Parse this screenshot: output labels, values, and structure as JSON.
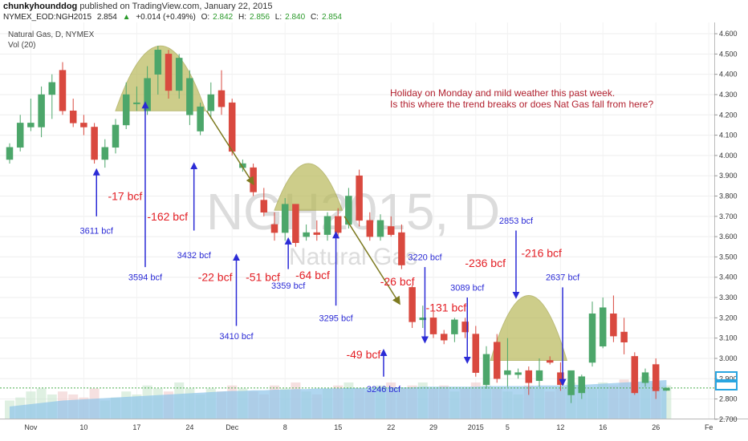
{
  "header": {
    "author": "chunkyhounddog",
    "published_text": "published on TradingView.com, January 22, 2015",
    "symbol": "NYMEX_EOD:NGH2015",
    "last": "2.854",
    "change": "+0.014 (+0.49%)",
    "ohlc": [
      {
        "label": "O:",
        "value": "2.842"
      },
      {
        "label": "H:",
        "value": "2.856"
      },
      {
        "label": "L:",
        "value": "2.840"
      },
      {
        "label": "C:",
        "value": "2.854"
      }
    ]
  },
  "legend": {
    "series_title": "Natural Gas, D, NYMEX",
    "volume_label": "Vol (20)"
  },
  "watermark": {
    "main": "NGH2015, D",
    "sub": "Natural Gas"
  },
  "notes": {
    "line1": "Holiday on Monday and mild weather this past week.",
    "line2": "Is this where the trend breaks or does Nat Gas fall from here?"
  },
  "colors": {
    "up": "#4ca66a",
    "down": "#d9493f",
    "arrow": "#2b2bd6",
    "change_text": "#e31e24",
    "dome": "#b8b95a",
    "volume_area": "#8fc4ea"
  },
  "chart_data": {
    "type": "candlestick",
    "ylim": [
      2.66,
      4.62
    ],
    "y_ticks": [
      "2.700",
      "2.800",
      "2.900",
      "3.000",
      "3.100",
      "3.200",
      "3.300",
      "3.400",
      "3.500",
      "3.600",
      "3.700",
      "3.800",
      "3.900",
      "4.000",
      "4.100",
      "4.200",
      "4.300",
      "4.400",
      "4.500",
      "4.600"
    ],
    "x_tick_labels": [
      {
        "i": 2,
        "label": "Nov"
      },
      {
        "i": 7,
        "label": "10"
      },
      {
        "i": 12,
        "label": "17"
      },
      {
        "i": 17,
        "label": "24"
      },
      {
        "i": 21,
        "label": "Dec"
      },
      {
        "i": 26,
        "label": "8"
      },
      {
        "i": 31,
        "label": "15"
      },
      {
        "i": 36,
        "label": "22"
      },
      {
        "i": 40,
        "label": "29"
      },
      {
        "i": 44,
        "label": "2015"
      },
      {
        "i": 47,
        "label": "5"
      },
      {
        "i": 52,
        "label": "12"
      },
      {
        "i": 56,
        "label": "16"
      },
      {
        "i": 61,
        "label": "26"
      },
      {
        "i": 66,
        "label": "Fe"
      }
    ],
    "current_price": 2.854,
    "candles": [
      {
        "o": 3.98,
        "h": 4.06,
        "l": 3.96,
        "c": 4.04
      },
      {
        "o": 4.04,
        "h": 4.2,
        "l": 4.02,
        "c": 4.16
      },
      {
        "o": 4.14,
        "h": 4.28,
        "l": 4.12,
        "c": 4.16
      },
      {
        "o": 4.14,
        "h": 4.34,
        "l": 4.09,
        "c": 4.3
      },
      {
        "o": 4.3,
        "h": 4.4,
        "l": 4.18,
        "c": 4.36
      },
      {
        "o": 4.42,
        "h": 4.46,
        "l": 4.2,
        "c": 4.22
      },
      {
        "o": 4.22,
        "h": 4.28,
        "l": 4.14,
        "c": 4.16
      },
      {
        "o": 4.16,
        "h": 4.2,
        "l": 4.1,
        "c": 4.14
      },
      {
        "o": 4.14,
        "h": 4.16,
        "l": 3.96,
        "c": 3.98
      },
      {
        "o": 3.98,
        "h": 4.08,
        "l": 3.94,
        "c": 4.04
      },
      {
        "o": 4.04,
        "h": 4.18,
        "l": 4.01,
        "c": 4.15
      },
      {
        "o": 4.15,
        "h": 4.36,
        "l": 4.13,
        "c": 4.3
      },
      {
        "o": 4.26,
        "h": 4.34,
        "l": 4.22,
        "c": 4.26
      },
      {
        "o": 4.22,
        "h": 4.44,
        "l": 4.2,
        "c": 4.38
      },
      {
        "o": 4.4,
        "h": 4.54,
        "l": 4.3,
        "c": 4.52
      },
      {
        "o": 4.5,
        "h": 4.52,
        "l": 4.28,
        "c": 4.32
      },
      {
        "o": 4.32,
        "h": 4.5,
        "l": 4.28,
        "c": 4.48
      },
      {
        "o": 4.2,
        "h": 4.42,
        "l": 4.15,
        "c": 4.38
      },
      {
        "o": 4.12,
        "h": 4.26,
        "l": 4.1,
        "c": 4.24
      },
      {
        "o": 4.22,
        "h": 4.36,
        "l": 4.18,
        "c": 4.3
      },
      {
        "o": 4.32,
        "h": 4.42,
        "l": 4.2,
        "c": 4.24
      },
      {
        "o": 4.26,
        "h": 4.28,
        "l": 4.0,
        "c": 4.02
      },
      {
        "o": 3.94,
        "h": 3.98,
        "l": 3.92,
        "c": 3.96
      },
      {
        "o": 3.94,
        "h": 3.96,
        "l": 3.8,
        "c": 3.82
      },
      {
        "o": 3.78,
        "h": 3.84,
        "l": 3.7,
        "c": 3.72
      },
      {
        "o": 3.66,
        "h": 3.72,
        "l": 3.58,
        "c": 3.62
      },
      {
        "o": 3.62,
        "h": 3.79,
        "l": 3.58,
        "c": 3.76
      },
      {
        "o": 3.76,
        "h": 3.76,
        "l": 3.55,
        "c": 3.57
      },
      {
        "o": 3.6,
        "h": 3.66,
        "l": 3.58,
        "c": 3.62
      },
      {
        "o": 3.62,
        "h": 3.68,
        "l": 3.58,
        "c": 3.61
      },
      {
        "o": 3.61,
        "h": 3.72,
        "l": 3.58,
        "c": 3.7
      },
      {
        "o": 3.7,
        "h": 3.74,
        "l": 3.59,
        "c": 3.62
      },
      {
        "o": 3.66,
        "h": 3.84,
        "l": 3.64,
        "c": 3.8
      },
      {
        "o": 3.9,
        "h": 3.93,
        "l": 3.65,
        "c": 3.68
      },
      {
        "o": 3.68,
        "h": 3.72,
        "l": 3.58,
        "c": 3.6
      },
      {
        "o": 3.6,
        "h": 3.71,
        "l": 3.58,
        "c": 3.68
      },
      {
        "o": 3.65,
        "h": 3.7,
        "l": 3.6,
        "c": 3.61
      },
      {
        "o": 3.62,
        "h": 3.66,
        "l": 3.44,
        "c": 3.46
      },
      {
        "o": 3.35,
        "h": 3.36,
        "l": 3.15,
        "c": 3.18
      },
      {
        "o": 3.19,
        "h": 3.26,
        "l": 3.15,
        "c": 3.2
      },
      {
        "o": 3.2,
        "h": 3.23,
        "l": 3.1,
        "c": 3.12
      },
      {
        "o": 3.12,
        "h": 3.14,
        "l": 3.07,
        "c": 3.09
      },
      {
        "o": 3.12,
        "h": 3.2,
        "l": 3.08,
        "c": 3.19
      },
      {
        "o": 3.18,
        "h": 3.2,
        "l": 3.1,
        "c": 3.13
      },
      {
        "o": 3.12,
        "h": 3.16,
        "l": 2.91,
        "c": 2.93
      },
      {
        "o": 2.87,
        "h": 3.06,
        "l": 2.85,
        "c": 3.02
      },
      {
        "o": 3.08,
        "h": 3.12,
        "l": 2.88,
        "c": 2.9
      },
      {
        "o": 2.92,
        "h": 3.1,
        "l": 2.86,
        "c": 2.94
      },
      {
        "o": 2.92,
        "h": 2.95,
        "l": 2.9,
        "c": 2.93
      },
      {
        "o": 2.94,
        "h": 2.96,
        "l": 2.82,
        "c": 2.88
      },
      {
        "o": 2.89,
        "h": 3.0,
        "l": 2.86,
        "c": 2.94
      },
      {
        "o": 2.99,
        "h": 3.01,
        "l": 2.97,
        "c": 2.98
      },
      {
        "o": 2.93,
        "h": 2.98,
        "l": 2.84,
        "c": 2.87
      },
      {
        "o": 2.82,
        "h": 2.94,
        "l": 2.78,
        "c": 2.94
      },
      {
        "o": 2.83,
        "h": 2.92,
        "l": 2.8,
        "c": 2.91
      },
      {
        "o": 2.98,
        "h": 3.28,
        "l": 2.96,
        "c": 3.22
      },
      {
        "o": 3.06,
        "h": 3.3,
        "l": 3.05,
        "c": 3.25
      },
      {
        "o": 3.22,
        "h": 3.31,
        "l": 3.08,
        "c": 3.11
      },
      {
        "o": 3.13,
        "h": 3.2,
        "l": 3.02,
        "c": 3.08
      },
      {
        "o": 3.01,
        "h": 3.03,
        "l": 2.82,
        "c": 2.83
      },
      {
        "o": 2.88,
        "h": 2.95,
        "l": 2.86,
        "c": 2.93
      },
      {
        "o": 2.97,
        "h": 3.0,
        "l": 2.8,
        "c": 2.84
      },
      {
        "o": 2.842,
        "h": 2.856,
        "l": 2.84,
        "c": 2.854
      }
    ],
    "volume_level": [
      0.3,
      0.35,
      0.45,
      0.5,
      0.4,
      0.45,
      0.4,
      0.35,
      0.5,
      0.3,
      0.35,
      0.45,
      0.4,
      0.55,
      0.5,
      0.45,
      0.6,
      0.5,
      0.4,
      0.5,
      0.45,
      0.55,
      0.5,
      0.45,
      0.4,
      0.55,
      0.5,
      0.6,
      0.45,
      0.4,
      0.5,
      0.55,
      0.6,
      0.5,
      0.45,
      0.55,
      0.6,
      0.5,
      0.55,
      0.6,
      0.5,
      0.55,
      0.45,
      0.5,
      0.6,
      0.55,
      0.5,
      0.45,
      0.4,
      0.55,
      0.5,
      0.45,
      0.5,
      0.6,
      0.55,
      0.5,
      0.6,
      0.55,
      0.65,
      0.6,
      0.7,
      0.6,
      0.55
    ],
    "volume_ma_level": [
      0.2,
      0.22,
      0.24,
      0.26,
      0.28,
      0.3,
      0.31,
      0.32,
      0.33,
      0.34,
      0.35,
      0.36,
      0.37,
      0.38,
      0.39,
      0.4,
      0.41,
      0.42,
      0.43,
      0.44,
      0.45,
      0.46,
      0.46,
      0.47,
      0.47,
      0.48,
      0.48,
      0.49,
      0.49,
      0.5,
      0.5,
      0.5,
      0.51,
      0.51,
      0.51,
      0.52,
      0.52,
      0.52,
      0.52,
      0.53,
      0.53,
      0.53,
      0.53,
      0.53,
      0.53,
      0.54,
      0.54,
      0.54,
      0.54,
      0.54,
      0.55,
      0.55,
      0.55,
      0.56,
      0.56,
      0.57,
      0.58,
      0.59,
      0.6,
      0.61,
      0.62,
      0.63,
      0.64
    ],
    "storage_annotations": [
      {
        "text": "3611 bcf",
        "i": 8.2,
        "text_y": 3.63,
        "arrow_from": 3.7,
        "arrow_to": 3.93
      },
      {
        "text": "3594 bcf",
        "i": 12.8,
        "text_y": 3.4,
        "arrow_from": 3.45,
        "arrow_to": 4.26
      },
      {
        "text": "3432 bcf",
        "i": 17.4,
        "text_y": 3.51,
        "arrow_from": 3.63,
        "arrow_to": 3.96
      },
      {
        "text": "3410 bcf",
        "i": 21.4,
        "text_y": 3.11,
        "arrow_from": 3.16,
        "arrow_to": 3.51
      },
      {
        "text": "3359 bcf",
        "i": 26.3,
        "text_y": 3.36,
        "arrow_from": 3.44,
        "arrow_to": 3.59
      },
      {
        "text": "3295 bcf",
        "i": 30.8,
        "text_y": 3.2,
        "arrow_from": 3.26,
        "arrow_to": 3.62
      },
      {
        "text": "3246 bcf",
        "i": 35.3,
        "text_y": 2.85,
        "arrow_from": 2.91,
        "arrow_to": 3.04
      },
      {
        "text": "3220 bcf",
        "i": 39.2,
        "text_y": 3.5,
        "arrow_from": 3.45,
        "arrow_to": 3.08
      },
      {
        "text": "3089 bcf",
        "i": 43.2,
        "text_y": 3.35,
        "arrow_from": 3.3,
        "arrow_to": 2.98
      },
      {
        "text": "2853 bcf",
        "i": 47.8,
        "text_y": 3.68,
        "arrow_from": 3.63,
        "arrow_to": 3.3
      },
      {
        "text": "2637 bcf",
        "i": 52.2,
        "text_y": 3.4,
        "arrow_from": 3.35,
        "arrow_to": 2.87
      }
    ],
    "change_annotations": [
      {
        "text": "-17 bcf",
        "i": 10.9,
        "y": 3.8
      },
      {
        "text": "-162 bcf",
        "i": 14.9,
        "y": 3.7
      },
      {
        "text": "-22 bcf",
        "i": 19.4,
        "y": 3.4
      },
      {
        "text": "-51 bcf",
        "i": 23.9,
        "y": 3.4
      },
      {
        "text": "-64 bcf",
        "i": 28.6,
        "y": 3.41
      },
      {
        "text": "-26 bcf",
        "i": 36.6,
        "y": 3.38
      },
      {
        "text": "-131 bcf",
        "i": 41.2,
        "y": 3.25
      },
      {
        "text": "-49 bcf",
        "i": 33.4,
        "y": 3.02
      },
      {
        "text": "-236 bcf",
        "i": 44.9,
        "y": 3.47
      },
      {
        "text": "-216 bcf",
        "i": 50.2,
        "y": 3.52
      }
    ],
    "domes": [
      {
        "i0": 10.0,
        "i1": 18.5,
        "base": 4.22,
        "peak": 4.54
      },
      {
        "i0": 25.0,
        "i1": 31.4,
        "base": 3.73,
        "peak": 3.96
      },
      {
        "i0": 45.4,
        "i1": 52.6,
        "base": 2.99,
        "peak": 3.31
      }
    ],
    "trend_arrows": [
      {
        "i0": 18.6,
        "i1": 23.0,
        "y0": 4.22,
        "y1": 3.86
      },
      {
        "i0": 31.6,
        "i1": 36.8,
        "y0": 3.7,
        "y1": 3.27
      }
    ]
  }
}
